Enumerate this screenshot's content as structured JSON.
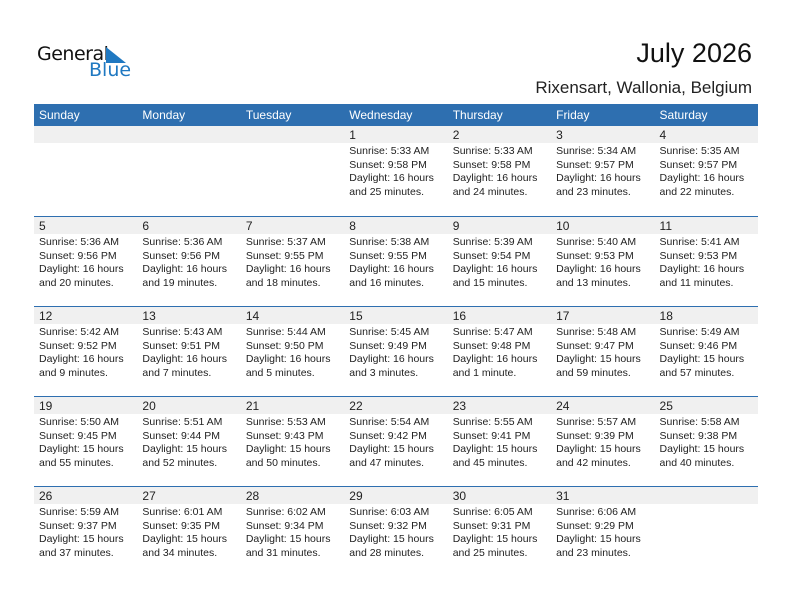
{
  "logo": {
    "line1": "General",
    "line2": "Blue"
  },
  "title": "July 2026",
  "location": "Rixensart, Wallonia, Belgium",
  "days": [
    "Sunday",
    "Monday",
    "Tuesday",
    "Wednesday",
    "Thursday",
    "Friday",
    "Saturday"
  ],
  "weeks": [
    [
      null,
      null,
      null,
      {
        "d": "1",
        "sr": "Sunrise: 5:33 AM",
        "ss": "Sunset: 9:58 PM",
        "dl": "Daylight: 16 hours",
        "dm": "and 25 minutes."
      },
      {
        "d": "2",
        "sr": "Sunrise: 5:33 AM",
        "ss": "Sunset: 9:58 PM",
        "dl": "Daylight: 16 hours",
        "dm": "and 24 minutes."
      },
      {
        "d": "3",
        "sr": "Sunrise: 5:34 AM",
        "ss": "Sunset: 9:57 PM",
        "dl": "Daylight: 16 hours",
        "dm": "and 23 minutes."
      },
      {
        "d": "4",
        "sr": "Sunrise: 5:35 AM",
        "ss": "Sunset: 9:57 PM",
        "dl": "Daylight: 16 hours",
        "dm": "and 22 minutes."
      }
    ],
    [
      {
        "d": "5",
        "sr": "Sunrise: 5:36 AM",
        "ss": "Sunset: 9:56 PM",
        "dl": "Daylight: 16 hours",
        "dm": "and 20 minutes."
      },
      {
        "d": "6",
        "sr": "Sunrise: 5:36 AM",
        "ss": "Sunset: 9:56 PM",
        "dl": "Daylight: 16 hours",
        "dm": "and 19 minutes."
      },
      {
        "d": "7",
        "sr": "Sunrise: 5:37 AM",
        "ss": "Sunset: 9:55 PM",
        "dl": "Daylight: 16 hours",
        "dm": "and 18 minutes."
      },
      {
        "d": "8",
        "sr": "Sunrise: 5:38 AM",
        "ss": "Sunset: 9:55 PM",
        "dl": "Daylight: 16 hours",
        "dm": "and 16 minutes."
      },
      {
        "d": "9",
        "sr": "Sunrise: 5:39 AM",
        "ss": "Sunset: 9:54 PM",
        "dl": "Daylight: 16 hours",
        "dm": "and 15 minutes."
      },
      {
        "d": "10",
        "sr": "Sunrise: 5:40 AM",
        "ss": "Sunset: 9:53 PM",
        "dl": "Daylight: 16 hours",
        "dm": "and 13 minutes."
      },
      {
        "d": "11",
        "sr": "Sunrise: 5:41 AM",
        "ss": "Sunset: 9:53 PM",
        "dl": "Daylight: 16 hours",
        "dm": "and 11 minutes."
      }
    ],
    [
      {
        "d": "12",
        "sr": "Sunrise: 5:42 AM",
        "ss": "Sunset: 9:52 PM",
        "dl": "Daylight: 16 hours",
        "dm": "and 9 minutes."
      },
      {
        "d": "13",
        "sr": "Sunrise: 5:43 AM",
        "ss": "Sunset: 9:51 PM",
        "dl": "Daylight: 16 hours",
        "dm": "and 7 minutes."
      },
      {
        "d": "14",
        "sr": "Sunrise: 5:44 AM",
        "ss": "Sunset: 9:50 PM",
        "dl": "Daylight: 16 hours",
        "dm": "and 5 minutes."
      },
      {
        "d": "15",
        "sr": "Sunrise: 5:45 AM",
        "ss": "Sunset: 9:49 PM",
        "dl": "Daylight: 16 hours",
        "dm": "and 3 minutes."
      },
      {
        "d": "16",
        "sr": "Sunrise: 5:47 AM",
        "ss": "Sunset: 9:48 PM",
        "dl": "Daylight: 16 hours",
        "dm": "and 1 minute."
      },
      {
        "d": "17",
        "sr": "Sunrise: 5:48 AM",
        "ss": "Sunset: 9:47 PM",
        "dl": "Daylight: 15 hours",
        "dm": "and 59 minutes."
      },
      {
        "d": "18",
        "sr": "Sunrise: 5:49 AM",
        "ss": "Sunset: 9:46 PM",
        "dl": "Daylight: 15 hours",
        "dm": "and 57 minutes."
      }
    ],
    [
      {
        "d": "19",
        "sr": "Sunrise: 5:50 AM",
        "ss": "Sunset: 9:45 PM",
        "dl": "Daylight: 15 hours",
        "dm": "and 55 minutes."
      },
      {
        "d": "20",
        "sr": "Sunrise: 5:51 AM",
        "ss": "Sunset: 9:44 PM",
        "dl": "Daylight: 15 hours",
        "dm": "and 52 minutes."
      },
      {
        "d": "21",
        "sr": "Sunrise: 5:53 AM",
        "ss": "Sunset: 9:43 PM",
        "dl": "Daylight: 15 hours",
        "dm": "and 50 minutes."
      },
      {
        "d": "22",
        "sr": "Sunrise: 5:54 AM",
        "ss": "Sunset: 9:42 PM",
        "dl": "Daylight: 15 hours",
        "dm": "and 47 minutes."
      },
      {
        "d": "23",
        "sr": "Sunrise: 5:55 AM",
        "ss": "Sunset: 9:41 PM",
        "dl": "Daylight: 15 hours",
        "dm": "and 45 minutes."
      },
      {
        "d": "24",
        "sr": "Sunrise: 5:57 AM",
        "ss": "Sunset: 9:39 PM",
        "dl": "Daylight: 15 hours",
        "dm": "and 42 minutes."
      },
      {
        "d": "25",
        "sr": "Sunrise: 5:58 AM",
        "ss": "Sunset: 9:38 PM",
        "dl": "Daylight: 15 hours",
        "dm": "and 40 minutes."
      }
    ],
    [
      {
        "d": "26",
        "sr": "Sunrise: 5:59 AM",
        "ss": "Sunset: 9:37 PM",
        "dl": "Daylight: 15 hours",
        "dm": "and 37 minutes."
      },
      {
        "d": "27",
        "sr": "Sunrise: 6:01 AM",
        "ss": "Sunset: 9:35 PM",
        "dl": "Daylight: 15 hours",
        "dm": "and 34 minutes."
      },
      {
        "d": "28",
        "sr": "Sunrise: 6:02 AM",
        "ss": "Sunset: 9:34 PM",
        "dl": "Daylight: 15 hours",
        "dm": "and 31 minutes."
      },
      {
        "d": "29",
        "sr": "Sunrise: 6:03 AM",
        "ss": "Sunset: 9:32 PM",
        "dl": "Daylight: 15 hours",
        "dm": "and 28 minutes."
      },
      {
        "d": "30",
        "sr": "Sunrise: 6:05 AM",
        "ss": "Sunset: 9:31 PM",
        "dl": "Daylight: 15 hours",
        "dm": "and 25 minutes."
      },
      {
        "d": "31",
        "sr": "Sunrise: 6:06 AM",
        "ss": "Sunset: 9:29 PM",
        "dl": "Daylight: 15 hours",
        "dm": "and 23 minutes."
      },
      null
    ]
  ],
  "colors": {
    "header": "#2e6fb0",
    "day_band": "#f0f0f0",
    "brand": "#1f78c1"
  }
}
